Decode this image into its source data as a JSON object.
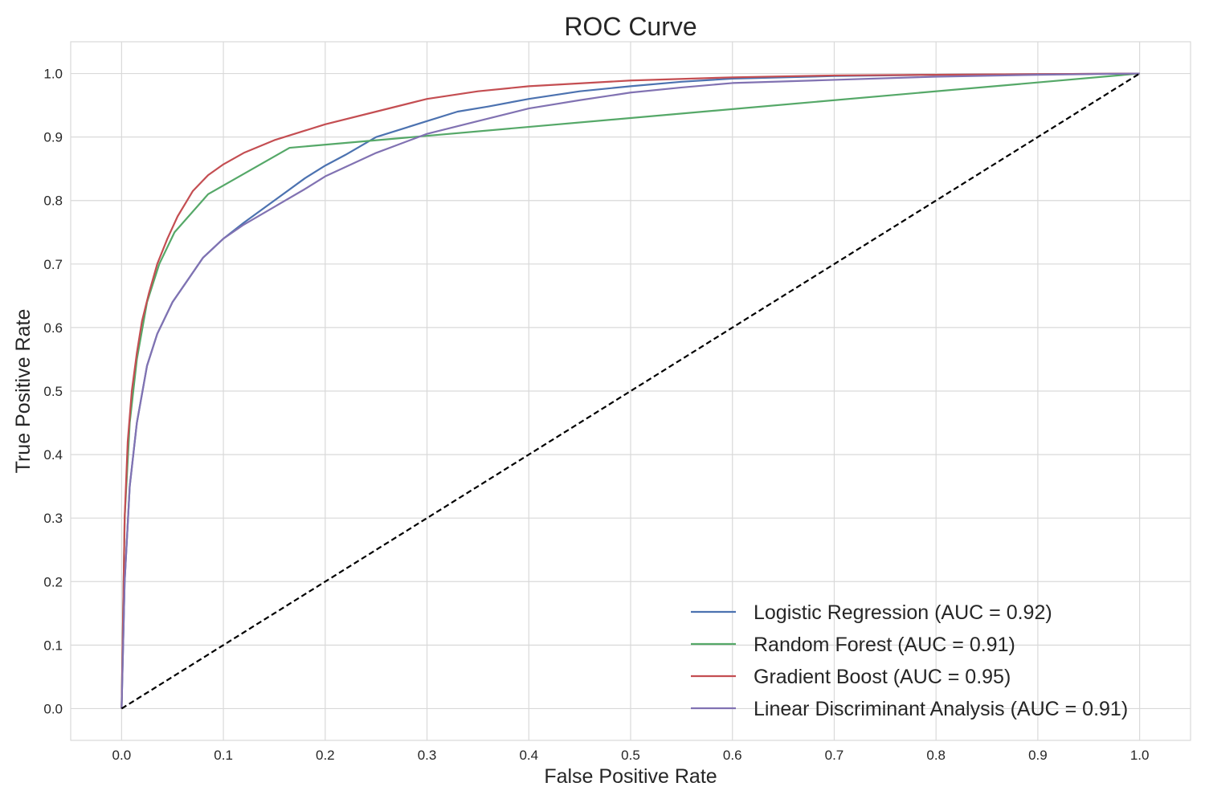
{
  "chart_data": {
    "type": "line",
    "title": "ROC Curve",
    "xlabel": "False Positive Rate",
    "ylabel": "True Positive Rate",
    "xlim": [
      -0.05,
      1.05
    ],
    "ylim": [
      -0.05,
      1.05
    ],
    "xticks": [
      "0.0",
      "0.1",
      "0.2",
      "0.3",
      "0.4",
      "0.5",
      "0.6",
      "0.7",
      "0.8",
      "0.9",
      "1.0"
    ],
    "yticks": [
      "0.0",
      "0.1",
      "0.2",
      "0.3",
      "0.4",
      "0.5",
      "0.6",
      "0.7",
      "0.8",
      "0.9",
      "1.0"
    ],
    "grid": true,
    "legend_position": "lower-right",
    "series": [
      {
        "name": "Logistic Regression (AUC = 0.92)",
        "color": "#4c72b0",
        "points": [
          [
            0,
            0
          ],
          [
            0.003,
            0.2
          ],
          [
            0.008,
            0.35
          ],
          [
            0.015,
            0.45
          ],
          [
            0.025,
            0.54
          ],
          [
            0.035,
            0.59
          ],
          [
            0.05,
            0.64
          ],
          [
            0.065,
            0.675
          ],
          [
            0.08,
            0.71
          ],
          [
            0.1,
            0.74
          ],
          [
            0.12,
            0.765
          ],
          [
            0.15,
            0.8
          ],
          [
            0.18,
            0.835
          ],
          [
            0.2,
            0.855
          ],
          [
            0.22,
            0.872
          ],
          [
            0.25,
            0.9
          ],
          [
            0.28,
            0.915
          ],
          [
            0.3,
            0.925
          ],
          [
            0.33,
            0.94
          ],
          [
            0.36,
            0.948
          ],
          [
            0.4,
            0.96
          ],
          [
            0.45,
            0.972
          ],
          [
            0.5,
            0.98
          ],
          [
            0.55,
            0.987
          ],
          [
            0.6,
            0.992
          ],
          [
            0.7,
            0.996
          ],
          [
            0.8,
            0.998
          ],
          [
            0.9,
            0.999
          ],
          [
            1.0,
            1.0
          ]
        ]
      },
      {
        "name": "Random Forest (AUC = 0.91)",
        "color": "#55a868",
        "points": [
          [
            0,
            0
          ],
          [
            0.003,
            0.3
          ],
          [
            0.008,
            0.45
          ],
          [
            0.015,
            0.55
          ],
          [
            0.025,
            0.64
          ],
          [
            0.037,
            0.7
          ],
          [
            0.052,
            0.75
          ],
          [
            0.085,
            0.81
          ],
          [
            0.165,
            0.883
          ],
          [
            1.0,
            1.0
          ]
        ]
      },
      {
        "name": "Gradient Boost (AUC = 0.95)",
        "color": "#c44e52",
        "points": [
          [
            0,
            0
          ],
          [
            0.003,
            0.3
          ],
          [
            0.006,
            0.42
          ],
          [
            0.01,
            0.5
          ],
          [
            0.015,
            0.56
          ],
          [
            0.02,
            0.61
          ],
          [
            0.027,
            0.655
          ],
          [
            0.035,
            0.7
          ],
          [
            0.045,
            0.74
          ],
          [
            0.055,
            0.775
          ],
          [
            0.07,
            0.815
          ],
          [
            0.085,
            0.84
          ],
          [
            0.1,
            0.857
          ],
          [
            0.12,
            0.875
          ],
          [
            0.15,
            0.895
          ],
          [
            0.18,
            0.91
          ],
          [
            0.2,
            0.92
          ],
          [
            0.25,
            0.94
          ],
          [
            0.3,
            0.96
          ],
          [
            0.35,
            0.972
          ],
          [
            0.4,
            0.98
          ],
          [
            0.5,
            0.989
          ],
          [
            0.6,
            0.994
          ],
          [
            0.7,
            0.997
          ],
          [
            0.8,
            0.998
          ],
          [
            0.9,
            0.999
          ],
          [
            1.0,
            1.0
          ]
        ]
      },
      {
        "name": "Linear Discriminant Analysis (AUC = 0.91)",
        "color": "#8172b2",
        "points": [
          [
            0,
            0
          ],
          [
            0.003,
            0.2
          ],
          [
            0.008,
            0.35
          ],
          [
            0.015,
            0.45
          ],
          [
            0.025,
            0.54
          ],
          [
            0.035,
            0.59
          ],
          [
            0.05,
            0.64
          ],
          [
            0.065,
            0.675
          ],
          [
            0.08,
            0.71
          ],
          [
            0.1,
            0.74
          ],
          [
            0.12,
            0.762
          ],
          [
            0.15,
            0.79
          ],
          [
            0.18,
            0.818
          ],
          [
            0.2,
            0.838
          ],
          [
            0.25,
            0.875
          ],
          [
            0.3,
            0.905
          ],
          [
            0.35,
            0.925
          ],
          [
            0.4,
            0.945
          ],
          [
            0.45,
            0.958
          ],
          [
            0.5,
            0.97
          ],
          [
            0.55,
            0.978
          ],
          [
            0.6,
            0.985
          ],
          [
            0.7,
            0.99
          ],
          [
            0.8,
            0.995
          ],
          [
            0.9,
            0.998
          ],
          [
            1.0,
            1.0
          ]
        ]
      },
      {
        "name": "",
        "color": "#000000",
        "dashed": true,
        "points": [
          [
            0,
            0
          ],
          [
            1,
            1
          ]
        ]
      }
    ]
  }
}
